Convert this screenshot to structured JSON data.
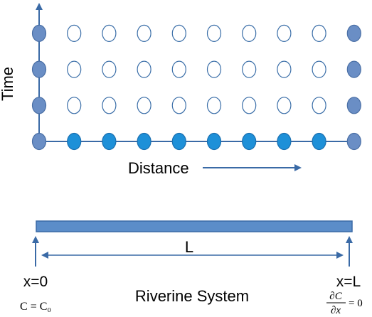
{
  "diagram": {
    "y_axis_label": "Time",
    "x_axis_label": "Distance",
    "grid": {
      "columns": 10,
      "rows": 4,
      "node_colors": {
        "boundary": "#6a8ec5",
        "initial": "#1e90d8",
        "interior_fill": "#ffffff",
        "interior_stroke": "#3a6ea8"
      }
    },
    "river": {
      "bar_fill": "#5b8dc9",
      "bar_stroke": "#3a6aa6",
      "length_label": "L",
      "left_label": "x=0",
      "right_label": "x=L",
      "left_condition": "C = C₀",
      "right_condition": "∂C/∂x = 0",
      "right_condition_num": "∂C",
      "right_condition_den": "∂x",
      "right_condition_rhs": "= 0",
      "system_label": "Riverine System"
    },
    "line_color": "#3a6aa6"
  }
}
